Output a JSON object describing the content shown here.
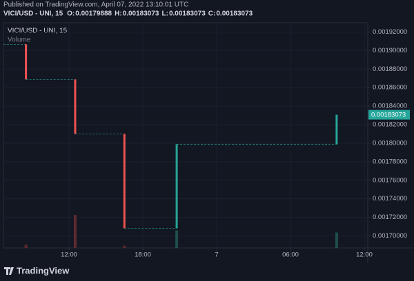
{
  "header": {
    "published": "Published on TradingView.com, April 07, 2022 13:10:01 UTC",
    "symbol": "VICI/USD - UNI, 15",
    "ohlc": [
      {
        "label": "O:",
        "value": 0.00179888
      },
      {
        "label": "H:",
        "value": 0.00183073
      },
      {
        "label": "L:",
        "value": 0.00183073
      },
      {
        "label": "C:",
        "value": 0.00183073
      }
    ]
  },
  "chart_data": {
    "type": "candlestick",
    "legend_symbol": "VICI/USD - UNI, 15",
    "volume_label": "Volume",
    "x": [
      8.5,
      12.5,
      16.5,
      20.75,
      33.75
    ],
    "open": [
      0.0019067,
      0.0018688,
      0.00181,
      0.0017082,
      0.00179888
    ],
    "close": [
      0.0018688,
      0.00181,
      0.0017082,
      0.00179888,
      0.00183073
    ],
    "volume": [
      3,
      30,
      2,
      16,
      14
    ],
    "up_color": "#26a69a",
    "down_color": "#ef5350",
    "up_volume_color": "#1f4f4b",
    "down_volume_color": "#5c2a2f",
    "xlim": [
      6.67,
      36.28
    ],
    "xticks": [
      {
        "value": 12,
        "label": "12:00"
      },
      {
        "value": 18,
        "label": "18:00"
      },
      {
        "value": 24,
        "label": "7"
      },
      {
        "value": 30,
        "label": "06:00"
      },
      {
        "value": 36,
        "label": "12:00"
      }
    ],
    "ylim": [
      0.001687,
      0.00193
    ],
    "yticks": [
      {
        "value": 0.0017,
        "label": "0.00170000"
      },
      {
        "value": 0.00172,
        "label": "0.00172000"
      },
      {
        "value": 0.00174,
        "label": "0.00174000"
      },
      {
        "value": 0.00176,
        "label": "0.00176000"
      },
      {
        "value": 0.00178,
        "label": "0.00178000"
      },
      {
        "value": 0.0018,
        "label": "0.00180000"
      },
      {
        "value": 0.00182,
        "label": "0.00182000"
      },
      {
        "value": 0.00184,
        "label": "0.00184000"
      },
      {
        "value": 0.00186,
        "label": "0.00186000"
      },
      {
        "value": 0.00188,
        "label": "0.00188000"
      },
      {
        "value": 0.0019,
        "label": "0.00190000"
      },
      {
        "value": 0.00192,
        "label": "0.00192000"
      }
    ],
    "grid": true
  },
  "footer": {
    "brand": "TradingView"
  }
}
